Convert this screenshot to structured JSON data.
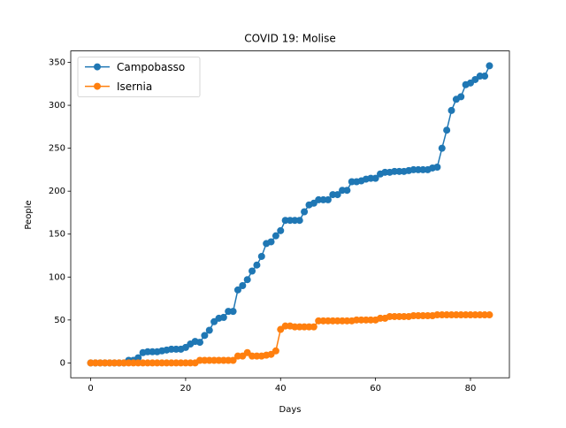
{
  "chart_data": {
    "type": "line",
    "title": "COVID 19: Molise",
    "xlabel": "Days",
    "ylabel": "People",
    "x": [
      0,
      1,
      2,
      3,
      4,
      5,
      6,
      7,
      8,
      9,
      10,
      11,
      12,
      13,
      14,
      15,
      16,
      17,
      18,
      19,
      20,
      21,
      22,
      23,
      24,
      25,
      26,
      27,
      28,
      29,
      30,
      31,
      32,
      33,
      34,
      35,
      36,
      37,
      38,
      39,
      40,
      41,
      42,
      43,
      44,
      45,
      46,
      47,
      48,
      49,
      50,
      51,
      52,
      53,
      54,
      55,
      56,
      57,
      58,
      59,
      60,
      61,
      62,
      63,
      64,
      65,
      66,
      67,
      68,
      69,
      70,
      71,
      72,
      73,
      74,
      75,
      76,
      77,
      78,
      79,
      80,
      81,
      82,
      83,
      84
    ],
    "series": [
      {
        "name": "Campobasso",
        "color": "#1f77b4",
        "values": [
          0,
          0,
          0,
          0,
          0,
          0,
          0,
          0,
          3,
          3,
          6,
          12,
          13,
          13,
          13,
          14,
          15,
          16,
          16,
          16,
          18,
          22,
          25,
          24,
          32,
          38,
          48,
          52,
          53,
          60,
          60,
          85,
          90,
          97,
          107,
          114,
          124,
          139,
          141,
          148,
          154,
          166,
          166,
          166,
          166,
          176,
          184,
          186,
          190,
          190,
          190,
          196,
          196,
          201,
          201,
          211,
          211,
          212,
          214,
          215,
          215,
          220,
          222,
          222,
          223,
          223,
          223,
          224,
          225,
          225,
          225,
          225,
          227,
          228,
          250,
          271,
          294,
          307,
          310,
          324,
          326,
          330,
          334,
          334,
          346
        ]
      },
      {
        "name": "Isernia",
        "color": "#ff7f0e",
        "values": [
          0,
          0,
          0,
          0,
          0,
          0,
          0,
          0,
          0,
          0,
          0,
          0,
          0,
          0,
          0,
          0,
          0,
          0,
          0,
          0,
          0,
          0,
          0,
          3,
          3,
          3,
          3,
          3,
          3,
          3,
          3,
          8,
          8,
          12,
          8,
          8,
          8,
          9,
          10,
          14,
          39,
          43,
          43,
          42,
          42,
          42,
          42,
          42,
          49,
          49,
          49,
          49,
          49,
          49,
          49,
          49,
          50,
          50,
          50,
          50,
          50,
          52,
          52,
          54,
          54,
          54,
          54,
          54,
          55,
          55,
          55,
          55,
          55,
          56,
          56,
          56,
          56,
          56,
          56,
          56,
          56,
          56,
          56,
          56,
          56
        ]
      }
    ],
    "xlim": [
      -4.2,
      88.2
    ],
    "ylim": [
      -17.3,
      363.3
    ],
    "xticks": [
      0,
      20,
      40,
      60,
      80
    ],
    "yticks": [
      0,
      50,
      100,
      150,
      200,
      250,
      300,
      350
    ],
    "legend": "upper left"
  }
}
